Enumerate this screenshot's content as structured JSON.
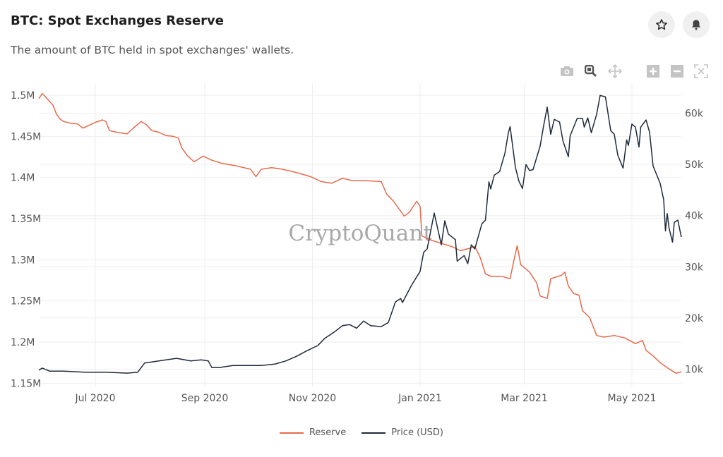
{
  "header": {
    "title": "BTC: Spot Exchanges Reserve",
    "subtitle": "The amount of BTC held in spot exchanges' wallets.",
    "icons": [
      "star-icon",
      "bell-icon"
    ]
  },
  "toolbar": {
    "icons": [
      "camera-icon",
      "zoom-icon",
      "pan-icon",
      "zoom-in-icon",
      "zoom-out-icon",
      "autoscale-icon"
    ]
  },
  "watermark": "CryptoQuant",
  "colors": {
    "reserve": "#e8694a",
    "price": "#1f2a3a"
  },
  "chart_data": {
    "type": "line",
    "title": "",
    "xlim": [
      "2020-05-30",
      "2021-05-29"
    ],
    "x_ticks": [
      {
        "date": "2020-07-01",
        "label": "Jul 2020"
      },
      {
        "date": "2020-09-01",
        "label": "Sep 2020"
      },
      {
        "date": "2020-11-01",
        "label": "Nov 2020"
      },
      {
        "date": "2021-01-01",
        "label": "Jan 2021"
      },
      {
        "date": "2021-03-01",
        "label": "Mar 2021"
      },
      {
        "date": "2021-05-01",
        "label": "May 2021"
      }
    ],
    "y_left": {
      "range": [
        1.146,
        1.506
      ],
      "unit": "M",
      "ticks": [
        {
          "v": 1.15,
          "label": "1.15M"
        },
        {
          "v": 1.2,
          "label": "1.2M"
        },
        {
          "v": 1.25,
          "label": "1.25M"
        },
        {
          "v": 1.3,
          "label": "1.3M"
        },
        {
          "v": 1.35,
          "label": "1.35M"
        },
        {
          "v": 1.4,
          "label": "1.4M"
        },
        {
          "v": 1.45,
          "label": "1.45M"
        },
        {
          "v": 1.5,
          "label": "1.5M"
        }
      ]
    },
    "y_right": {
      "range": [
        6.6,
        64.5
      ],
      "unit": "k",
      "ticks": [
        {
          "v": 10,
          "label": "10k"
        },
        {
          "v": 20,
          "label": "20k"
        },
        {
          "v": 30,
          "label": "30k"
        },
        {
          "v": 40,
          "label": "40k"
        },
        {
          "v": 50,
          "label": "50k"
        },
        {
          "v": 60,
          "label": "60k"
        }
      ]
    },
    "grid": true,
    "legend": "bottom-center",
    "series": [
      {
        "name": "Reserve",
        "axis": "left",
        "points": [
          [
            "2020-05-30",
            1.496
          ],
          [
            "2020-06-01",
            1.502
          ],
          [
            "2020-06-04",
            1.495
          ],
          [
            "2020-06-07",
            1.488
          ],
          [
            "2020-06-09",
            1.477
          ],
          [
            "2020-06-11",
            1.471
          ],
          [
            "2020-06-13",
            1.468
          ],
          [
            "2020-06-17",
            1.466
          ],
          [
            "2020-06-21",
            1.465
          ],
          [
            "2020-06-24",
            1.46
          ],
          [
            "2020-06-27",
            1.463
          ],
          [
            "2020-07-01",
            1.467
          ],
          [
            "2020-07-05",
            1.47
          ],
          [
            "2020-07-07",
            1.468
          ],
          [
            "2020-07-09",
            1.457
          ],
          [
            "2020-07-13",
            1.455
          ],
          [
            "2020-07-19",
            1.453
          ],
          [
            "2020-07-23",
            1.461
          ],
          [
            "2020-07-27",
            1.468
          ],
          [
            "2020-07-30",
            1.464
          ],
          [
            "2020-08-02",
            1.457
          ],
          [
            "2020-08-06",
            1.455
          ],
          [
            "2020-08-10",
            1.451
          ],
          [
            "2020-08-14",
            1.45
          ],
          [
            "2020-08-17",
            1.448
          ],
          [
            "2020-08-19",
            1.436
          ],
          [
            "2020-08-22",
            1.427
          ],
          [
            "2020-08-26",
            1.419
          ],
          [
            "2020-08-31",
            1.426
          ],
          [
            "2020-09-05",
            1.421
          ],
          [
            "2020-09-11",
            1.417
          ],
          [
            "2020-09-19",
            1.414
          ],
          [
            "2020-09-27",
            1.41
          ],
          [
            "2020-09-30",
            1.401
          ],
          [
            "2020-10-03",
            1.41
          ],
          [
            "2020-10-09",
            1.412
          ],
          [
            "2020-10-15",
            1.41
          ],
          [
            "2020-10-23",
            1.406
          ],
          [
            "2020-10-31",
            1.401
          ],
          [
            "2020-11-06",
            1.395
          ],
          [
            "2020-11-12",
            1.393
          ],
          [
            "2020-11-18",
            1.399
          ],
          [
            "2020-11-24",
            1.396
          ],
          [
            "2020-12-02",
            1.396
          ],
          [
            "2020-12-10",
            1.395
          ],
          [
            "2020-12-13",
            1.38
          ],
          [
            "2020-12-17",
            1.371
          ],
          [
            "2020-12-23",
            1.353
          ],
          [
            "2020-12-26",
            1.358
          ],
          [
            "2020-12-30",
            1.371
          ],
          [
            "2021-01-01",
            1.365
          ],
          [
            "2021-01-02",
            1.329
          ],
          [
            "2021-01-07",
            1.324
          ],
          [
            "2021-01-13",
            1.32
          ],
          [
            "2021-01-19",
            1.316
          ],
          [
            "2021-01-24",
            1.311
          ],
          [
            "2021-01-29",
            1.314
          ],
          [
            "2021-02-01",
            1.316
          ],
          [
            "2021-02-04",
            1.303
          ],
          [
            "2021-02-07",
            1.283
          ],
          [
            "2021-02-10",
            1.28
          ],
          [
            "2021-02-16",
            1.28
          ],
          [
            "2021-02-21",
            1.277
          ],
          [
            "2021-02-23",
            1.298
          ],
          [
            "2021-02-25",
            1.317
          ],
          [
            "2021-02-27",
            1.294
          ],
          [
            "2021-03-04",
            1.285
          ],
          [
            "2021-03-08",
            1.272
          ],
          [
            "2021-03-10",
            1.256
          ],
          [
            "2021-03-14",
            1.253
          ],
          [
            "2021-03-16",
            1.277
          ],
          [
            "2021-03-22",
            1.281
          ],
          [
            "2021-03-24",
            1.285
          ],
          [
            "2021-03-26",
            1.268
          ],
          [
            "2021-03-29",
            1.259
          ],
          [
            "2021-04-01",
            1.257
          ],
          [
            "2021-04-03",
            1.238
          ],
          [
            "2021-04-07",
            1.23
          ],
          [
            "2021-04-11",
            1.208
          ],
          [
            "2021-04-15",
            1.206
          ],
          [
            "2021-04-21",
            1.208
          ],
          [
            "2021-04-27",
            1.205
          ],
          [
            "2021-05-03",
            1.198
          ],
          [
            "2021-05-07",
            1.202
          ],
          [
            "2021-05-09",
            1.19
          ],
          [
            "2021-05-13",
            1.183
          ],
          [
            "2021-05-17",
            1.175
          ],
          [
            "2021-05-23",
            1.166
          ],
          [
            "2021-05-26",
            1.162
          ],
          [
            "2021-05-29",
            1.164
          ]
        ]
      },
      {
        "name": "Price (USD)",
        "axis": "right",
        "points": [
          [
            "2020-05-30",
            9.8
          ],
          [
            "2020-06-01",
            10.2
          ],
          [
            "2020-06-05",
            9.6
          ],
          [
            "2020-06-13",
            9.6
          ],
          [
            "2020-06-25",
            9.4
          ],
          [
            "2020-07-07",
            9.4
          ],
          [
            "2020-07-19",
            9.2
          ],
          [
            "2020-07-25",
            9.4
          ],
          [
            "2020-07-29",
            11.2
          ],
          [
            "2020-08-02",
            11.4
          ],
          [
            "2020-08-08",
            11.7
          ],
          [
            "2020-08-16",
            12.1
          ],
          [
            "2020-08-24",
            11.6
          ],
          [
            "2020-08-30",
            11.8
          ],
          [
            "2020-09-03",
            11.6
          ],
          [
            "2020-09-05",
            10.3
          ],
          [
            "2020-09-09",
            10.3
          ],
          [
            "2020-09-17",
            10.7
          ],
          [
            "2020-09-25",
            10.7
          ],
          [
            "2020-10-03",
            10.7
          ],
          [
            "2020-10-11",
            11.0
          ],
          [
            "2020-10-17",
            11.6
          ],
          [
            "2020-10-23",
            12.5
          ],
          [
            "2020-10-29",
            13.6
          ],
          [
            "2020-11-04",
            14.6
          ],
          [
            "2020-11-08",
            16.0
          ],
          [
            "2020-11-14",
            17.4
          ],
          [
            "2020-11-18",
            18.5
          ],
          [
            "2020-11-22",
            18.7
          ],
          [
            "2020-11-26",
            18.0
          ],
          [
            "2020-11-30",
            19.4
          ],
          [
            "2020-12-04",
            18.5
          ],
          [
            "2020-12-10",
            18.3
          ],
          [
            "2020-12-14",
            19.1
          ],
          [
            "2020-12-18",
            23.1
          ],
          [
            "2020-12-21",
            23.8
          ],
          [
            "2020-12-22",
            23.0
          ],
          [
            "2020-12-27",
            26.3
          ],
          [
            "2021-01-01",
            29.1
          ],
          [
            "2021-01-03",
            32.8
          ],
          [
            "2021-01-05",
            33.5
          ],
          [
            "2021-01-09",
            40.5
          ],
          [
            "2021-01-13",
            34.3
          ],
          [
            "2021-01-15",
            39.0
          ],
          [
            "2021-01-17",
            36.4
          ],
          [
            "2021-01-21",
            35.3
          ],
          [
            "2021-01-22",
            31.1
          ],
          [
            "2021-01-26",
            32.2
          ],
          [
            "2021-01-28",
            30.6
          ],
          [
            "2021-01-30",
            34.3
          ],
          [
            "2021-02-01",
            33.5
          ],
          [
            "2021-02-05",
            38.4
          ],
          [
            "2021-02-07",
            39.1
          ],
          [
            "2021-02-09",
            46.6
          ],
          [
            "2021-02-10",
            45.2
          ],
          [
            "2021-02-12",
            47.9
          ],
          [
            "2021-02-15",
            48.6
          ],
          [
            "2021-02-18",
            52.1
          ],
          [
            "2021-02-20",
            56.2
          ],
          [
            "2021-02-21",
            57.4
          ],
          [
            "2021-02-24",
            49.4
          ],
          [
            "2021-02-26",
            46.7
          ],
          [
            "2021-02-28",
            45.3
          ],
          [
            "2021-03-02",
            50.0
          ],
          [
            "2021-03-04",
            48.8
          ],
          [
            "2021-03-06",
            49.0
          ],
          [
            "2021-03-10",
            53.6
          ],
          [
            "2021-03-12",
            57.6
          ],
          [
            "2021-03-14",
            61.2
          ],
          [
            "2021-03-16",
            55.9
          ],
          [
            "2021-03-18",
            58.8
          ],
          [
            "2021-03-21",
            58.3
          ],
          [
            "2021-03-23",
            54.5
          ],
          [
            "2021-03-26",
            51.5
          ],
          [
            "2021-03-27",
            55.6
          ],
          [
            "2021-03-31",
            59.0
          ],
          [
            "2021-04-03",
            59.0
          ],
          [
            "2021-04-04",
            57.3
          ],
          [
            "2021-04-06",
            59.1
          ],
          [
            "2021-04-08",
            56.2
          ],
          [
            "2021-04-11",
            59.8
          ],
          [
            "2021-04-13",
            63.5
          ],
          [
            "2021-04-16",
            63.2
          ],
          [
            "2021-04-19",
            56.6
          ],
          [
            "2021-04-21",
            55.9
          ],
          [
            "2021-04-23",
            51.8
          ],
          [
            "2021-04-26",
            49.3
          ],
          [
            "2021-04-28",
            54.8
          ],
          [
            "2021-04-29",
            53.7
          ],
          [
            "2021-05-01",
            57.9
          ],
          [
            "2021-05-03",
            57.3
          ],
          [
            "2021-05-05",
            53.4
          ],
          [
            "2021-05-06",
            57.3
          ],
          [
            "2021-05-09",
            58.7
          ],
          [
            "2021-05-11",
            56.3
          ],
          [
            "2021-05-13",
            49.7
          ],
          [
            "2021-05-17",
            46.3
          ],
          [
            "2021-05-19",
            43.1
          ],
          [
            "2021-05-20",
            37.0
          ],
          [
            "2021-05-21",
            40.4
          ],
          [
            "2021-05-22",
            37.6
          ],
          [
            "2021-05-24",
            34.8
          ],
          [
            "2021-05-25",
            38.7
          ],
          [
            "2021-05-27",
            39.1
          ],
          [
            "2021-05-29",
            35.8
          ]
        ]
      }
    ]
  }
}
